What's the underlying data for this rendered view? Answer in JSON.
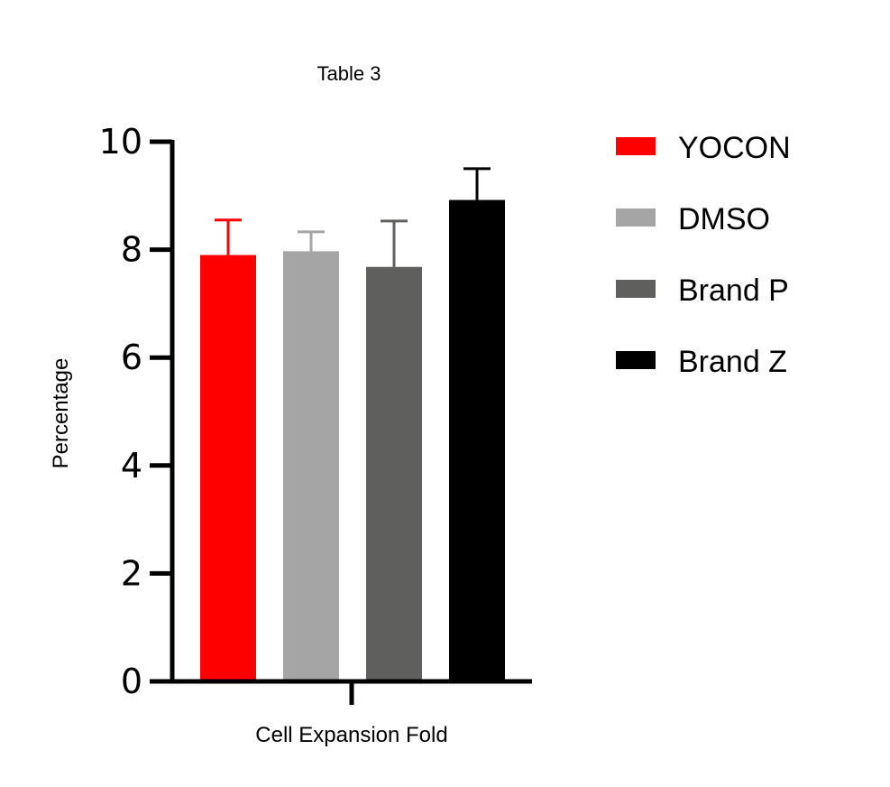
{
  "chart_data": {
    "type": "bar",
    "title": "Table 3",
    "xlabel": "Cell Expansion Fold",
    "ylabel": "Percentage",
    "ylim": [
      0,
      10
    ],
    "yticks": [
      0,
      2,
      4,
      6,
      8,
      10
    ],
    "grid": false,
    "legend_position": "right",
    "series": [
      {
        "name": "YOCON",
        "value": 7.9,
        "error": 0.65,
        "color": "#ff0000"
      },
      {
        "name": "DMSO",
        "value": 7.97,
        "error": 0.36,
        "color": "#a5a5a5"
      },
      {
        "name": "Brand P",
        "value": 7.68,
        "error": 0.85,
        "color": "#5f5f5d"
      },
      {
        "name": "Brand Z",
        "value": 8.92,
        "error": 0.58,
        "color": "#000000"
      }
    ]
  }
}
